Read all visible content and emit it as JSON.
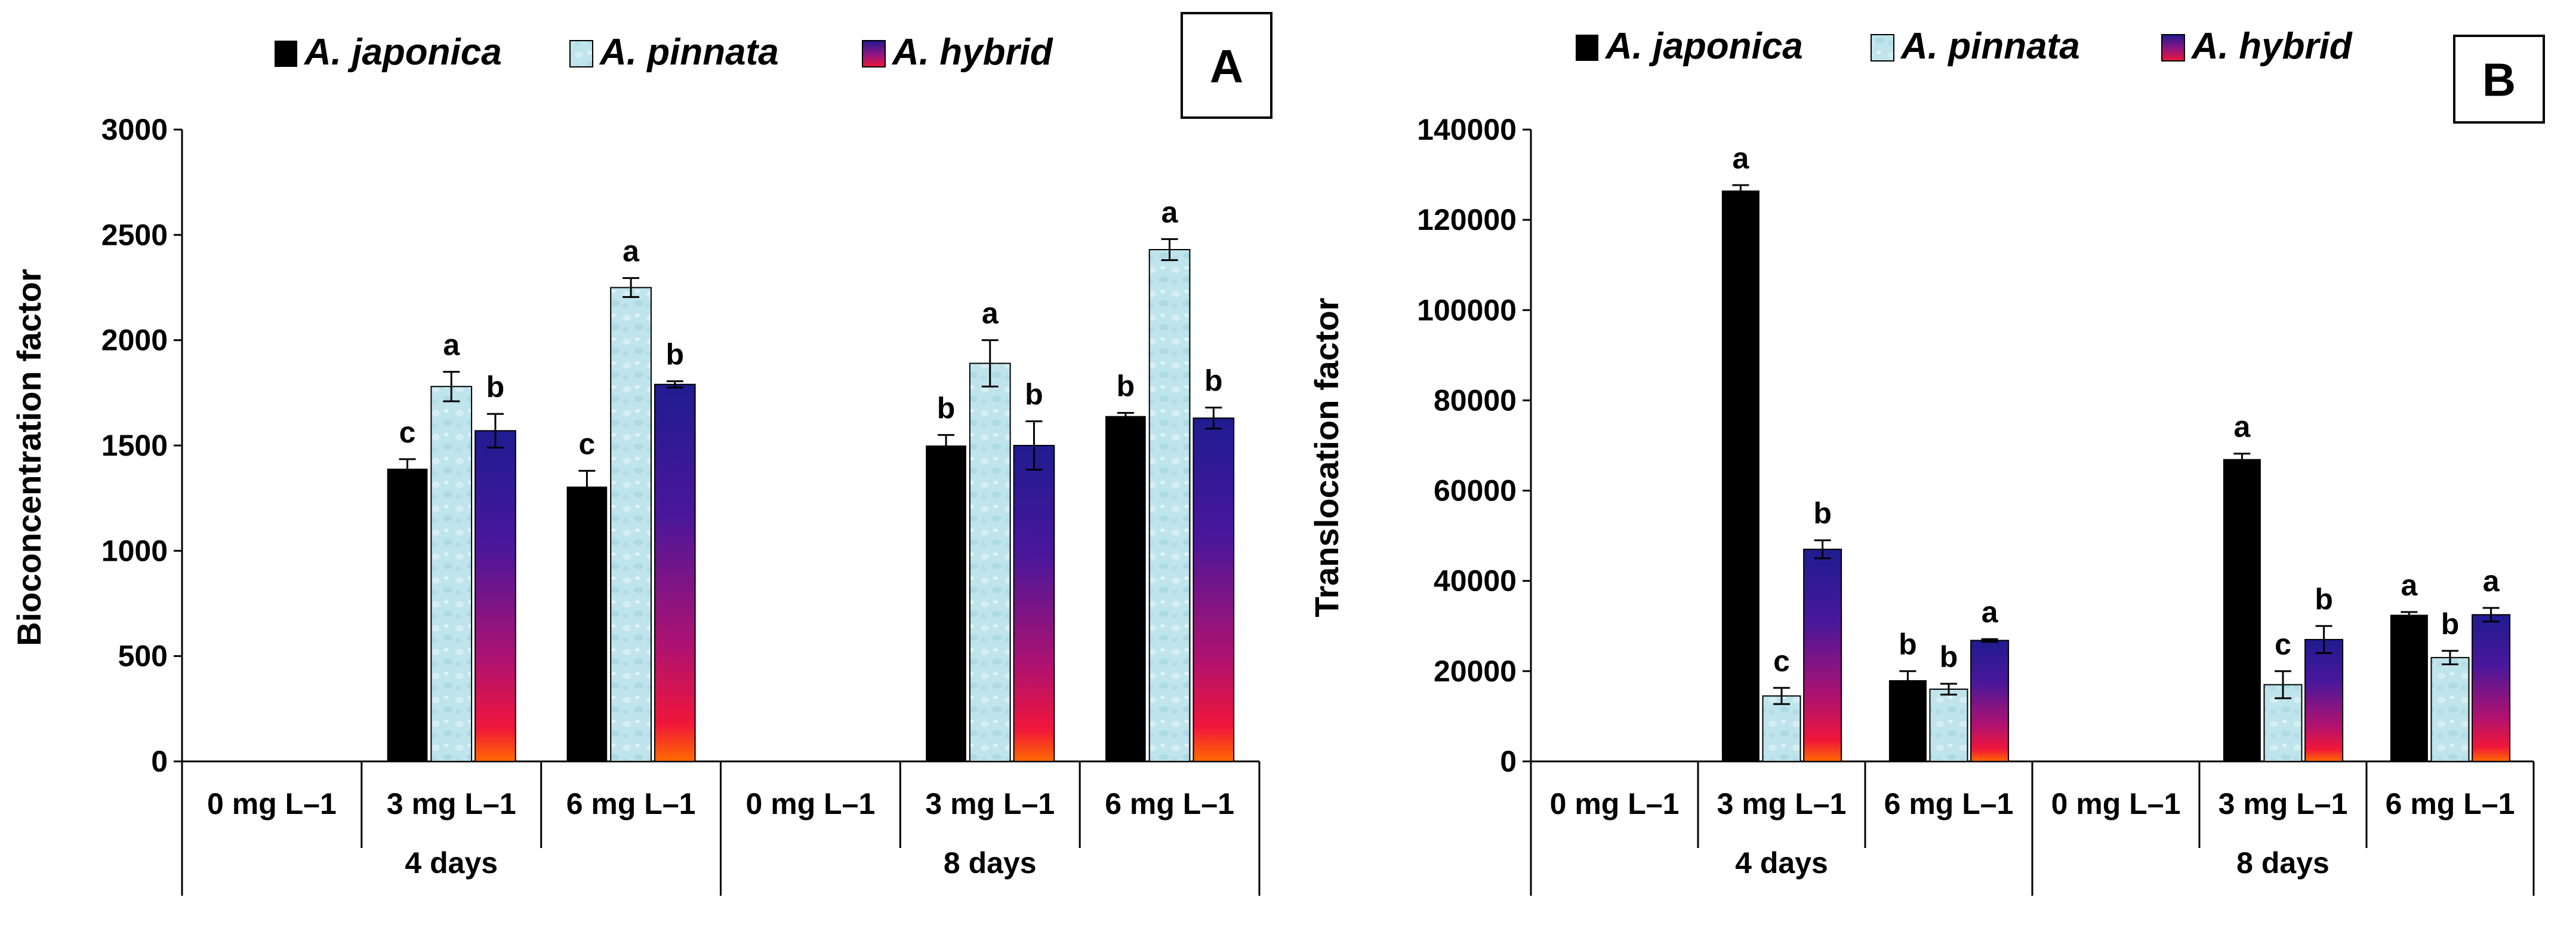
{
  "chart_data": [
    {
      "type": "bar",
      "panel_label": "A",
      "ylabel": "Bioconcentration factor",
      "ylim": [
        0,
        3000
      ],
      "yticks": [
        0,
        500,
        1000,
        1500,
        2000,
        2500,
        3000
      ],
      "ytick_labels": [
        "0",
        "500",
        "1000",
        "1500",
        "2000",
        "2500",
        "3000"
      ],
      "legend": [
        "A. japonica",
        "A. pinnata",
        "A. hybrid"
      ],
      "legend_position": "top",
      "categories": [
        "0 mg L–1",
        "3 mg L–1",
        "6 mg L–1",
        "0 mg L–1",
        "3 mg L–1",
        "6 mg L–1"
      ],
      "groups": [
        "4 days",
        "8 days"
      ],
      "series": [
        {
          "name": "A. japonica",
          "values": [
            0,
            1390,
            1305,
            0,
            1500,
            1640
          ],
          "errors": [
            0,
            45,
            75,
            0,
            50,
            15
          ],
          "labels": [
            "",
            "c",
            "c",
            "",
            "b",
            "b"
          ]
        },
        {
          "name": "A. pinnata",
          "values": [
            0,
            1780,
            2250,
            0,
            1890,
            2430
          ],
          "errors": [
            0,
            70,
            45,
            0,
            110,
            50
          ],
          "labels": [
            "",
            "a",
            "a",
            "",
            "a",
            "a"
          ]
        },
        {
          "name": "A. hybrid",
          "values": [
            0,
            1570,
            1790,
            0,
            1500,
            1630
          ],
          "errors": [
            0,
            80,
            15,
            0,
            115,
            50
          ],
          "labels": [
            "",
            "b",
            "b",
            "",
            "b",
            "b"
          ]
        }
      ]
    },
    {
      "type": "bar",
      "panel_label": "B",
      "ylabel": "Translocation factor",
      "ylim": [
        0,
        140000
      ],
      "yticks": [
        0,
        20000,
        40000,
        60000,
        80000,
        100000,
        120000,
        140000
      ],
      "ytick_labels": [
        "0",
        "20000",
        "40000",
        "60000",
        "80000",
        "100000",
        "120000",
        "140000"
      ],
      "legend": [
        "A. japonica",
        "A. pinnata",
        "A. hybrid"
      ],
      "legend_position": "top",
      "categories": [
        "0 mg L–1",
        "3 mg L–1",
        "6 mg L–1",
        "0 mg L–1",
        "3 mg L–1",
        "6 mg L–1"
      ],
      "groups": [
        "4 days",
        "8 days"
      ],
      "series": [
        {
          "name": "A. japonica",
          "values": [
            0,
            126500,
            18000,
            0,
            67000,
            32500
          ],
          "errors": [
            0,
            1200,
            2000,
            0,
            1200,
            600
          ],
          "labels": [
            "",
            "a",
            "b",
            "",
            "a",
            "a"
          ]
        },
        {
          "name": "A. pinnata",
          "values": [
            0,
            14500,
            16000,
            0,
            17000,
            23000
          ],
          "errors": [
            0,
            1800,
            1200,
            0,
            3000,
            1500
          ],
          "labels": [
            "",
            "c",
            "b",
            "",
            "c",
            "b"
          ]
        },
        {
          "name": "A. hybrid",
          "values": [
            0,
            47000,
            26800,
            0,
            27000,
            32500
          ],
          "errors": [
            0,
            2000,
            300,
            0,
            3000,
            1500
          ],
          "labels": [
            "",
            "b",
            "a",
            "",
            "b",
            "a"
          ]
        }
      ]
    }
  ]
}
